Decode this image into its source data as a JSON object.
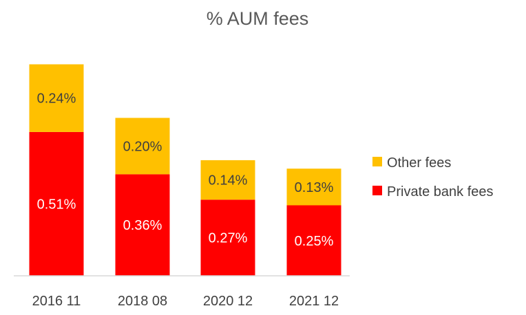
{
  "chart_data": {
    "type": "bar",
    "stacked": true,
    "title": "% AUM fees",
    "xlabel": "",
    "ylabel": "",
    "categories": [
      "2016 11",
      "2018 08",
      "2020 12",
      "2021 12"
    ],
    "series": [
      {
        "name": "Private bank fees",
        "values": [
          0.51,
          0.36,
          0.27,
          0.25
        ],
        "labels": [
          "0.51%",
          "0.36%",
          "0.27%",
          "0.25%"
        ],
        "color": "#FF0000"
      },
      {
        "name": "Other fees",
        "values": [
          0.24,
          0.2,
          0.14,
          0.13
        ],
        "labels": [
          "0.24%",
          "0.20%",
          "0.14%",
          "0.13%"
        ],
        "color": "#FFC000"
      }
    ],
    "legend": {
      "position": "right",
      "order": [
        "Other fees",
        "Private bank fees"
      ]
    },
    "grid": false,
    "ylim": [
      0,
      0.8
    ]
  }
}
